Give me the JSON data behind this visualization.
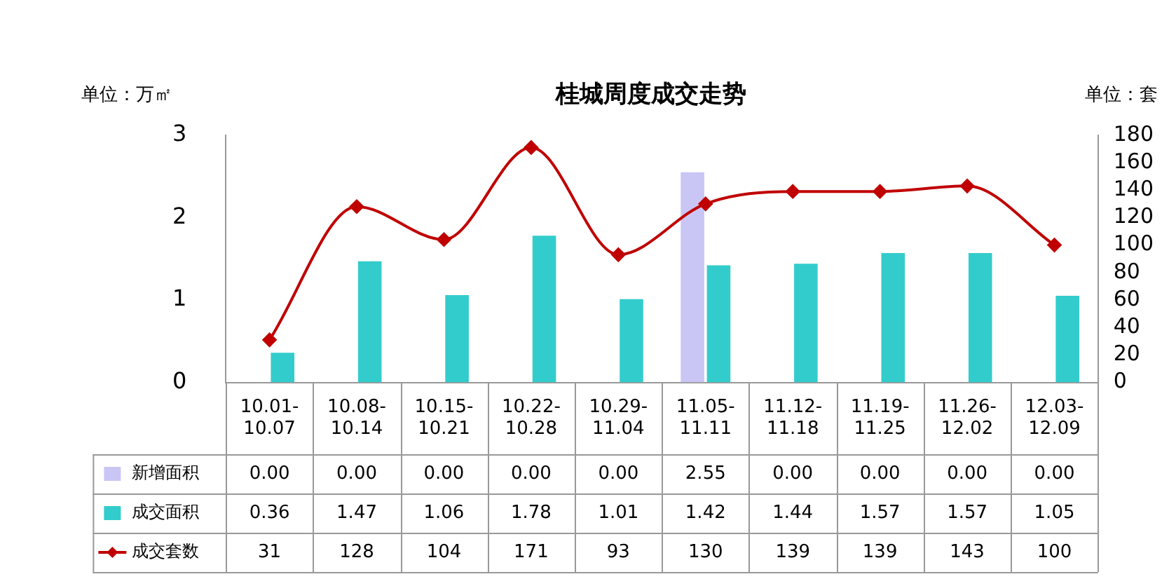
{
  "chart_data": {
    "type": "bar",
    "title": "桂城周度成交走势",
    "ylabel": "单位：万㎡",
    "y2label": "单位：套",
    "categories": [
      "10.01-10.07",
      "10.08-10.14",
      "10.15-10.21",
      "10.22-10.28",
      "10.29-11.04",
      "11.05-11.11",
      "11.12-11.18",
      "11.19-11.25",
      "11.26-12.02",
      "12.03-12.09"
    ],
    "series": [
      {
        "name": "新增面积",
        "color": "#c9c6f5",
        "values": [
          0,
          0,
          0,
          0,
          0,
          2.55,
          0,
          0,
          0,
          0
        ],
        "value_labels": [
          "0.00",
          "0.00",
          "0.00",
          "0.00",
          "0.00",
          "2.55",
          "0.00",
          "0.00",
          "0.00",
          "0.00"
        ]
      },
      {
        "name": "成交面积",
        "color": "#33cccc",
        "values": [
          0.36,
          1.47,
          1.06,
          1.78,
          1.01,
          1.42,
          1.44,
          1.57,
          1.57,
          1.05
        ],
        "value_labels": [
          "0.36",
          "1.47",
          "1.06",
          "1.78",
          "1.01",
          "1.42",
          "1.44",
          "1.57",
          "1.57",
          "1.05"
        ]
      },
      {
        "name": "成交套数",
        "type": "line",
        "axis": "y2",
        "color": "#c00000",
        "marker": "diamond",
        "values": [
          31,
          128,
          104,
          171,
          93,
          130,
          139,
          139,
          143,
          100
        ],
        "value_labels": [
          "31",
          "128",
          "104",
          "171",
          "93",
          "130",
          "139",
          "139",
          "143",
          "100"
        ]
      }
    ],
    "ylim": [
      0,
      3
    ],
    "yticks": [
      0,
      1,
      2,
      3
    ],
    "y2lim": [
      0,
      180
    ],
    "y2ticks": [
      0,
      20,
      40,
      60,
      80,
      100,
      120,
      140,
      160,
      180
    ],
    "grid": false,
    "legend": "bottom"
  }
}
